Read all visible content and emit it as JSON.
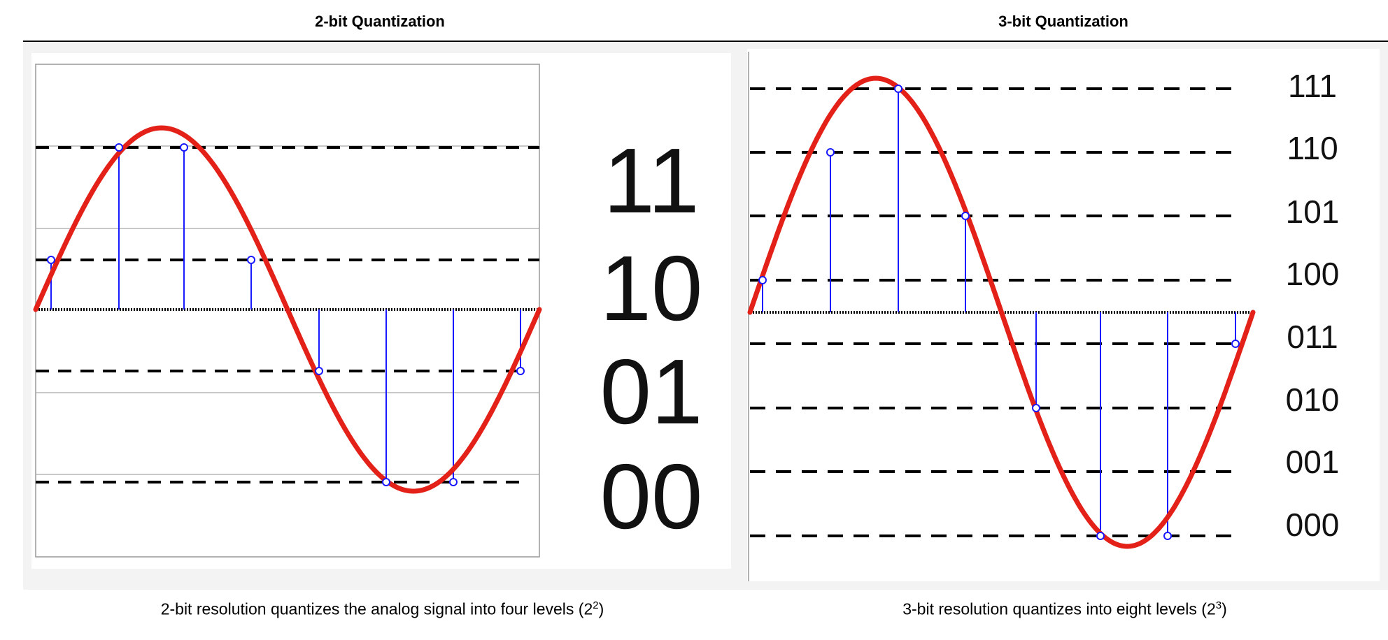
{
  "panels": [
    {
      "title": "2-bit Quantization",
      "caption": {
        "text": "2-bit resolution quantizes the analog signal into four levels",
        "base": "2",
        "exponent": "2"
      },
      "levels": [
        "11",
        "10",
        "01",
        "00"
      ],
      "colors": {
        "signal": "#e32119",
        "sample": "#1a1aff",
        "level": "#000000",
        "grid": "#b5b5b5"
      }
    },
    {
      "title": "3-bit Quantization",
      "caption": {
        "text": "3-bit resolution quantizes into eight levels",
        "base": "2",
        "exponent": "3"
      },
      "levels": [
        "111",
        "110",
        "101",
        "100",
        "011",
        "010",
        "001",
        "000"
      ],
      "colors": {
        "signal": "#e32119",
        "sample": "#1a1aff",
        "level": "#000000"
      }
    }
  ]
}
